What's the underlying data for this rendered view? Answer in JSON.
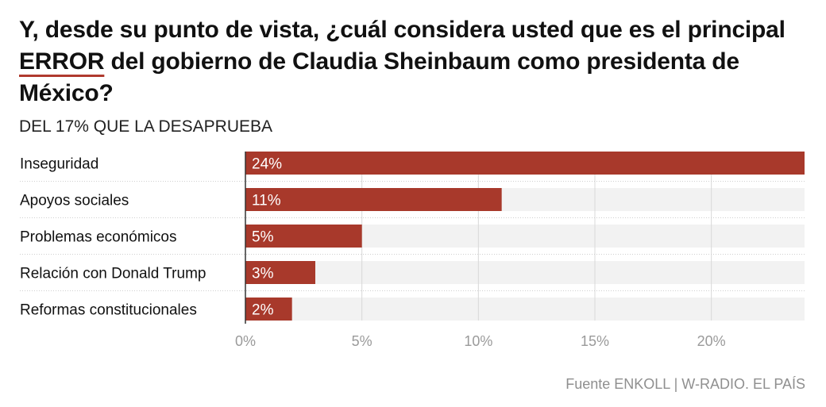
{
  "title": {
    "part1": "Y, desde su punto de vista, ¿cuál considera usted que es el principal ",
    "highlight": "ERROR",
    "part2": " del gobierno de Claudia Sheinbaum como presidenta de México?"
  },
  "subtitle": "DEL 17% QUE LA DESAPRUEBA",
  "source": "Fuente ENKOLL | W-RADIO. EL PAÍS",
  "colors": {
    "bar": "#a8392b",
    "track": "#f2f2f2",
    "grid": "#d8d8d8",
    "axis": "#333333"
  },
  "chart_data": {
    "type": "bar",
    "orientation": "horizontal",
    "categories": [
      "Inseguridad",
      "Apoyos sociales",
      "Problemas económicos",
      "Relación con Donald Trump",
      "Reformas constitucionales"
    ],
    "values": [
      24,
      11,
      5,
      3,
      2
    ],
    "value_labels": [
      "24%",
      "11%",
      "5%",
      "3%",
      "2%"
    ],
    "xlim": [
      0,
      24
    ],
    "xticks": [
      0,
      5,
      10,
      15,
      20
    ],
    "xtick_labels": [
      "0%",
      "5%",
      "10%",
      "15%",
      "20%"
    ],
    "grid": true
  }
}
